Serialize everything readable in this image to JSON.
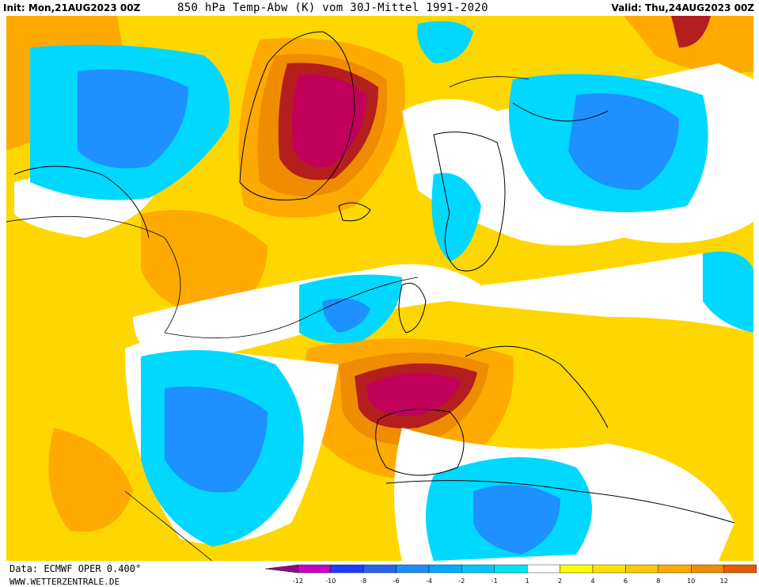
{
  "header": {
    "init": "Init: Mon,21AUG2023 00Z",
    "title": "850 hPa Temp-Abw (K) vom 30J-Mittel 1991-2020",
    "valid": "Valid: Thu,24AUG2023 00Z"
  },
  "footer": {
    "data": "Data: ECMWF OPER 0.400°",
    "site": "WWW.WETTERZENTRALE.DE"
  },
  "legend": {
    "bins": [
      {
        "color": "#8e0a82"
      },
      {
        "color": "#c800c8"
      },
      {
        "color": "#1e3cff"
      },
      {
        "color": "#2864f0"
      },
      {
        "color": "#1e8cff"
      },
      {
        "color": "#00aaff"
      },
      {
        "color": "#00c8ff"
      },
      {
        "color": "#00e6f0"
      },
      {
        "color": "#ffffff"
      },
      {
        "color": "#ffff00"
      },
      {
        "color": "#ffe100"
      },
      {
        "color": "#ffc800"
      },
      {
        "color": "#ffaa00"
      },
      {
        "color": "#f08c00"
      },
      {
        "color": "#e65a00"
      },
      {
        "color": "#b41e1e"
      },
      {
        "color": "#c8006e"
      }
    ],
    "ticks": [
      "-12",
      "-10",
      "-8",
      "-6",
      "-4",
      "-2",
      "-1",
      "1",
      "2",
      "4",
      "6",
      "8",
      "10",
      "12"
    ]
  },
  "colors": {
    "warm_light": "#ffd700",
    "warm_orange": "#ffaa00",
    "warm_dark": "#f08c00",
    "hot_red": "#b41e1e",
    "hot_magenta": "#c0005a",
    "cool_light": "#00d8ff",
    "cool_mid": "#1e90ff",
    "neutral": "#ffffff"
  }
}
